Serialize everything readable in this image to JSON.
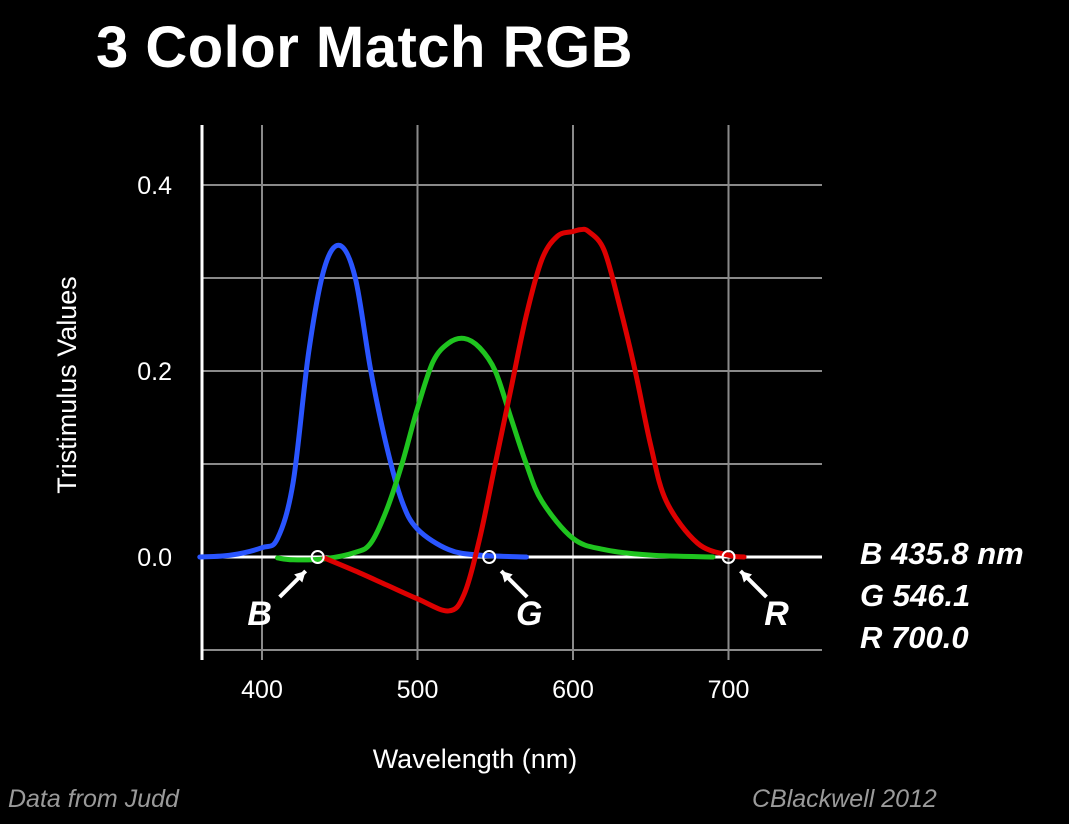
{
  "title": "3 Color Match RGB",
  "chart_data": {
    "type": "line",
    "title": "3 Color Match RGB",
    "xlabel": "Wavelength (nm)",
    "ylabel": "Tristimulus Values",
    "xlim": [
      360,
      760
    ],
    "ylim": [
      -0.1,
      0.45
    ],
    "xticks": [
      400,
      500,
      600,
      700
    ],
    "yticks": [
      0.4,
      0.2,
      0.0
    ],
    "ytick_labels": [
      "0.4",
      "0.2",
      "0.0"
    ],
    "grid": true,
    "series": [
      {
        "color": "#2a55ff",
        "x": [
          360,
          380,
          400,
          410,
          420,
          430,
          440,
          450,
          460,
          470,
          480,
          490,
          500,
          520,
          540,
          570
        ],
        "y": [
          0.0,
          0.002,
          0.01,
          0.02,
          0.08,
          0.22,
          0.31,
          0.335,
          0.3,
          0.2,
          0.12,
          0.06,
          0.03,
          0.008,
          0.002,
          0.0
        ]
      },
      {
        "color": "#1fc41f",
        "x": [
          410,
          420,
          440,
          460,
          470,
          480,
          490,
          500,
          510,
          520,
          530,
          540,
          550,
          560,
          570,
          580,
          600,
          620,
          650,
          690
        ],
        "y": [
          -0.001,
          -0.003,
          -0.002,
          0.005,
          0.015,
          0.05,
          0.1,
          0.16,
          0.21,
          0.23,
          0.235,
          0.225,
          0.2,
          0.15,
          0.1,
          0.06,
          0.02,
          0.008,
          0.002,
          0.0
        ]
      },
      {
        "color": "#dd0000",
        "x": [
          440,
          460,
          480,
          500,
          520,
          530,
          540,
          550,
          560,
          570,
          580,
          590,
          600,
          605,
          610,
          620,
          630,
          640,
          650,
          660,
          680,
          700,
          710
        ],
        "y": [
          -0.001,
          -0.015,
          -0.03,
          -0.045,
          -0.058,
          -0.04,
          0.02,
          0.1,
          0.18,
          0.26,
          0.32,
          0.345,
          0.35,
          0.352,
          0.35,
          0.33,
          0.27,
          0.2,
          0.12,
          0.06,
          0.015,
          0.002,
          0.0
        ]
      }
    ],
    "markers": [
      {
        "label": "B",
        "x": 435.8
      },
      {
        "label": "G",
        "x": 546.1
      },
      {
        "label": "R",
        "x": 700.0
      }
    ]
  },
  "legend": {
    "b": "B 435.8 nm",
    "g": "G 546.1",
    "r": "R 700.0"
  },
  "credits": {
    "source": "Data from Judd",
    "author": "CBlackwell 2012"
  }
}
